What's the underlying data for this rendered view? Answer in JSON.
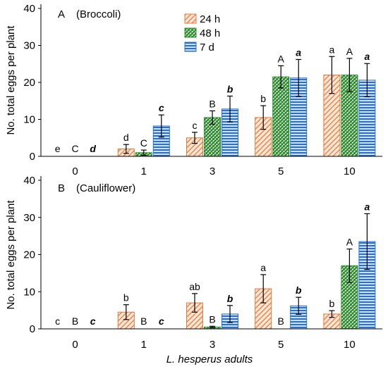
{
  "chart_data": [
    {
      "type": "bar",
      "panel_label": "A",
      "panel_title": "(Broccoli)",
      "categories": [
        "0",
        "1",
        "3",
        "5",
        "10"
      ],
      "ylabel": "No. total eggs per plant",
      "xlabel": "",
      "ylim": [
        0,
        40
      ],
      "yticks": [
        0,
        10,
        20,
        30,
        40
      ],
      "legend": "top-center",
      "series": [
        {
          "name": "24 h",
          "color": "#e8783a",
          "pattern": "diagonal-hatch",
          "values": [
            0,
            2,
            5,
            10.5,
            22
          ],
          "errors": [
            0,
            1.2,
            1.5,
            3.2,
            5
          ],
          "letters": [
            "e",
            "d",
            "c",
            "b",
            "a"
          ]
        },
        {
          "name": "48 h",
          "color": "#2e8b2e",
          "pattern": "crosshatch",
          "values": [
            0,
            1,
            10.5,
            21.5,
            22
          ],
          "errors": [
            0,
            0.7,
            1.8,
            3,
            4.5
          ],
          "letters": [
            "C",
            "C",
            "B",
            "A",
            "A"
          ]
        },
        {
          "name": "7 d",
          "color": "#2a70c8",
          "pattern": "horizontal-stripes",
          "values": [
            0,
            8.2,
            12.8,
            21.2,
            20.6
          ],
          "errors": [
            0,
            3,
            3.5,
            5,
            4.5
          ],
          "letters": [
            "d",
            "c",
            "b",
            "a",
            "a"
          ]
        }
      ]
    },
    {
      "type": "bar",
      "panel_label": "B",
      "panel_title": "(Cauliflower)",
      "categories": [
        "0",
        "1",
        "3",
        "5",
        "10"
      ],
      "ylabel": "No. total eggs per plant",
      "xlabel": "L. hesperus adults",
      "ylim": [
        0,
        40
      ],
      "yticks": [
        0,
        10,
        20,
        30,
        40
      ],
      "series": [
        {
          "name": "24 h",
          "color": "#e8783a",
          "pattern": "diagonal-hatch",
          "values": [
            0,
            4.5,
            7,
            10.8,
            4
          ],
          "errors": [
            0,
            2,
            2.5,
            3.8,
            0.9
          ],
          "letters": [
            "c",
            "b",
            "ab",
            "a",
            "b"
          ]
        },
        {
          "name": "48 h",
          "color": "#2e8b2e",
          "pattern": "crosshatch",
          "values": [
            0,
            0,
            0.5,
            0,
            17
          ],
          "errors": [
            0,
            0,
            0.2,
            0,
            4.5
          ],
          "letters": [
            "B",
            "B",
            "B",
            "B",
            "A"
          ]
        },
        {
          "name": "7 d",
          "color": "#2a70c8",
          "pattern": "horizontal-stripes",
          "values": [
            0,
            0,
            4,
            6.2,
            23.5
          ],
          "errors": [
            0,
            0,
            2.3,
            2.3,
            7.5
          ],
          "letters": [
            "c",
            "c",
            "b",
            "b",
            "a"
          ]
        }
      ]
    }
  ]
}
